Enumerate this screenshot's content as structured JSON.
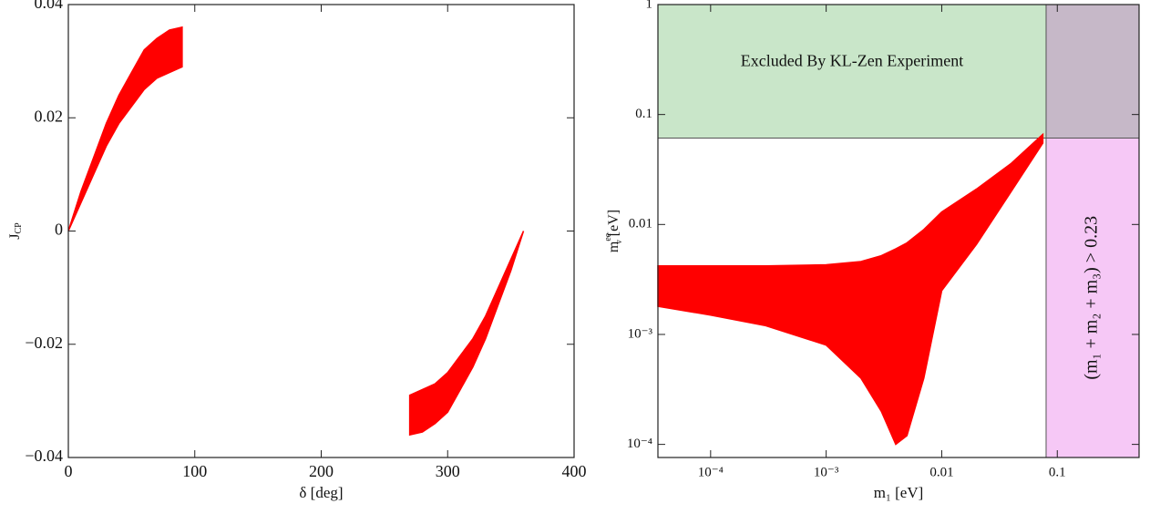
{
  "chart_data": [
    {
      "type": "band",
      "xlabel": "δ [deg]",
      "ylabel": {
        "base": "J",
        "sub": "CP"
      },
      "xlim": [
        0,
        400
      ],
      "xticks": [
        0,
        100,
        200,
        300,
        400
      ],
      "ylim": [
        -0.04,
        0.04
      ],
      "yticks": [
        {
          "value": -0.04,
          "label": "−0.04"
        },
        {
          "value": -0.02,
          "label": "−0.02"
        },
        0,
        0.02,
        0.04
      ],
      "color": "#ff0000",
      "bands": [
        {
          "x": [
            0,
            10,
            20,
            30,
            40,
            50,
            60,
            70,
            80,
            90
          ],
          "upper": [
            0,
            0.007,
            0.013,
            0.019,
            0.024,
            0.028,
            0.032,
            0.034,
            0.0355,
            0.036
          ],
          "lower": [
            0,
            0.005,
            0.01,
            0.015,
            0.019,
            0.022,
            0.025,
            0.027,
            0.028,
            0.029
          ]
        },
        {
          "x": [
            270,
            280,
            290,
            300,
            310,
            320,
            330,
            340,
            350,
            360
          ],
          "upper": [
            -0.029,
            -0.028,
            -0.027,
            -0.025,
            -0.022,
            -0.019,
            -0.015,
            -0.01,
            -0.005,
            0
          ],
          "lower": [
            -0.036,
            -0.0355,
            -0.034,
            -0.032,
            -0.028,
            -0.024,
            -0.019,
            -0.013,
            -0.007,
            0
          ]
        }
      ]
    },
    {
      "type": "band",
      "log_x": true,
      "log_y": true,
      "xlabel": "m₁ [eV]",
      "ylabel": {
        "base": "m",
        "sub": "ν",
        "sup": "ee",
        "unit": " [eV]"
      },
      "xlim": [
        3.5e-05,
        0.51
      ],
      "xticks": [
        {
          "value": 0.0001,
          "label": "10⁻⁴"
        },
        {
          "value": 0.001,
          "label": "10⁻³"
        },
        0.01,
        0.1
      ],
      "ylim": [
        7.6e-05,
        1
      ],
      "yticks": [
        {
          "value": 0.0001,
          "label": "10⁻⁴"
        },
        {
          "value": 0.001,
          "label": "10⁻³"
        },
        0.01,
        0.1,
        1
      ],
      "color": "#ff0000",
      "bands": [
        {
          "x": [
            3.5e-05,
            0.0001,
            0.0003,
            0.001,
            0.002,
            0.003,
            0.004,
            0.005,
            0.007,
            0.01,
            0.02,
            0.04,
            0.075
          ],
          "upper": [
            0.0042,
            0.0042,
            0.0042,
            0.0043,
            0.0046,
            0.0052,
            0.006,
            0.0068,
            0.009,
            0.013,
            0.021,
            0.036,
            0.066
          ],
          "lower": [
            0.0018,
            0.0015,
            0.0012,
            0.0008,
            0.0004,
            0.0002,
            0.0001,
            0.00012,
            0.0004,
            0.0025,
            0.0066,
            0.02,
            0.055
          ]
        }
      ],
      "excluded_y_above": 0.061,
      "excluded_y_color": "#c9e6c9",
      "excluded_y_text": "Excluded By KL-Zen Experiment",
      "excluded_x_above": 0.08,
      "excluded_x_color": "#f6c8f6",
      "excluded_x_text": "(m₁ + m₂ + m₃) > 0.23",
      "overlap_color": "#c6b8c8"
    }
  ]
}
